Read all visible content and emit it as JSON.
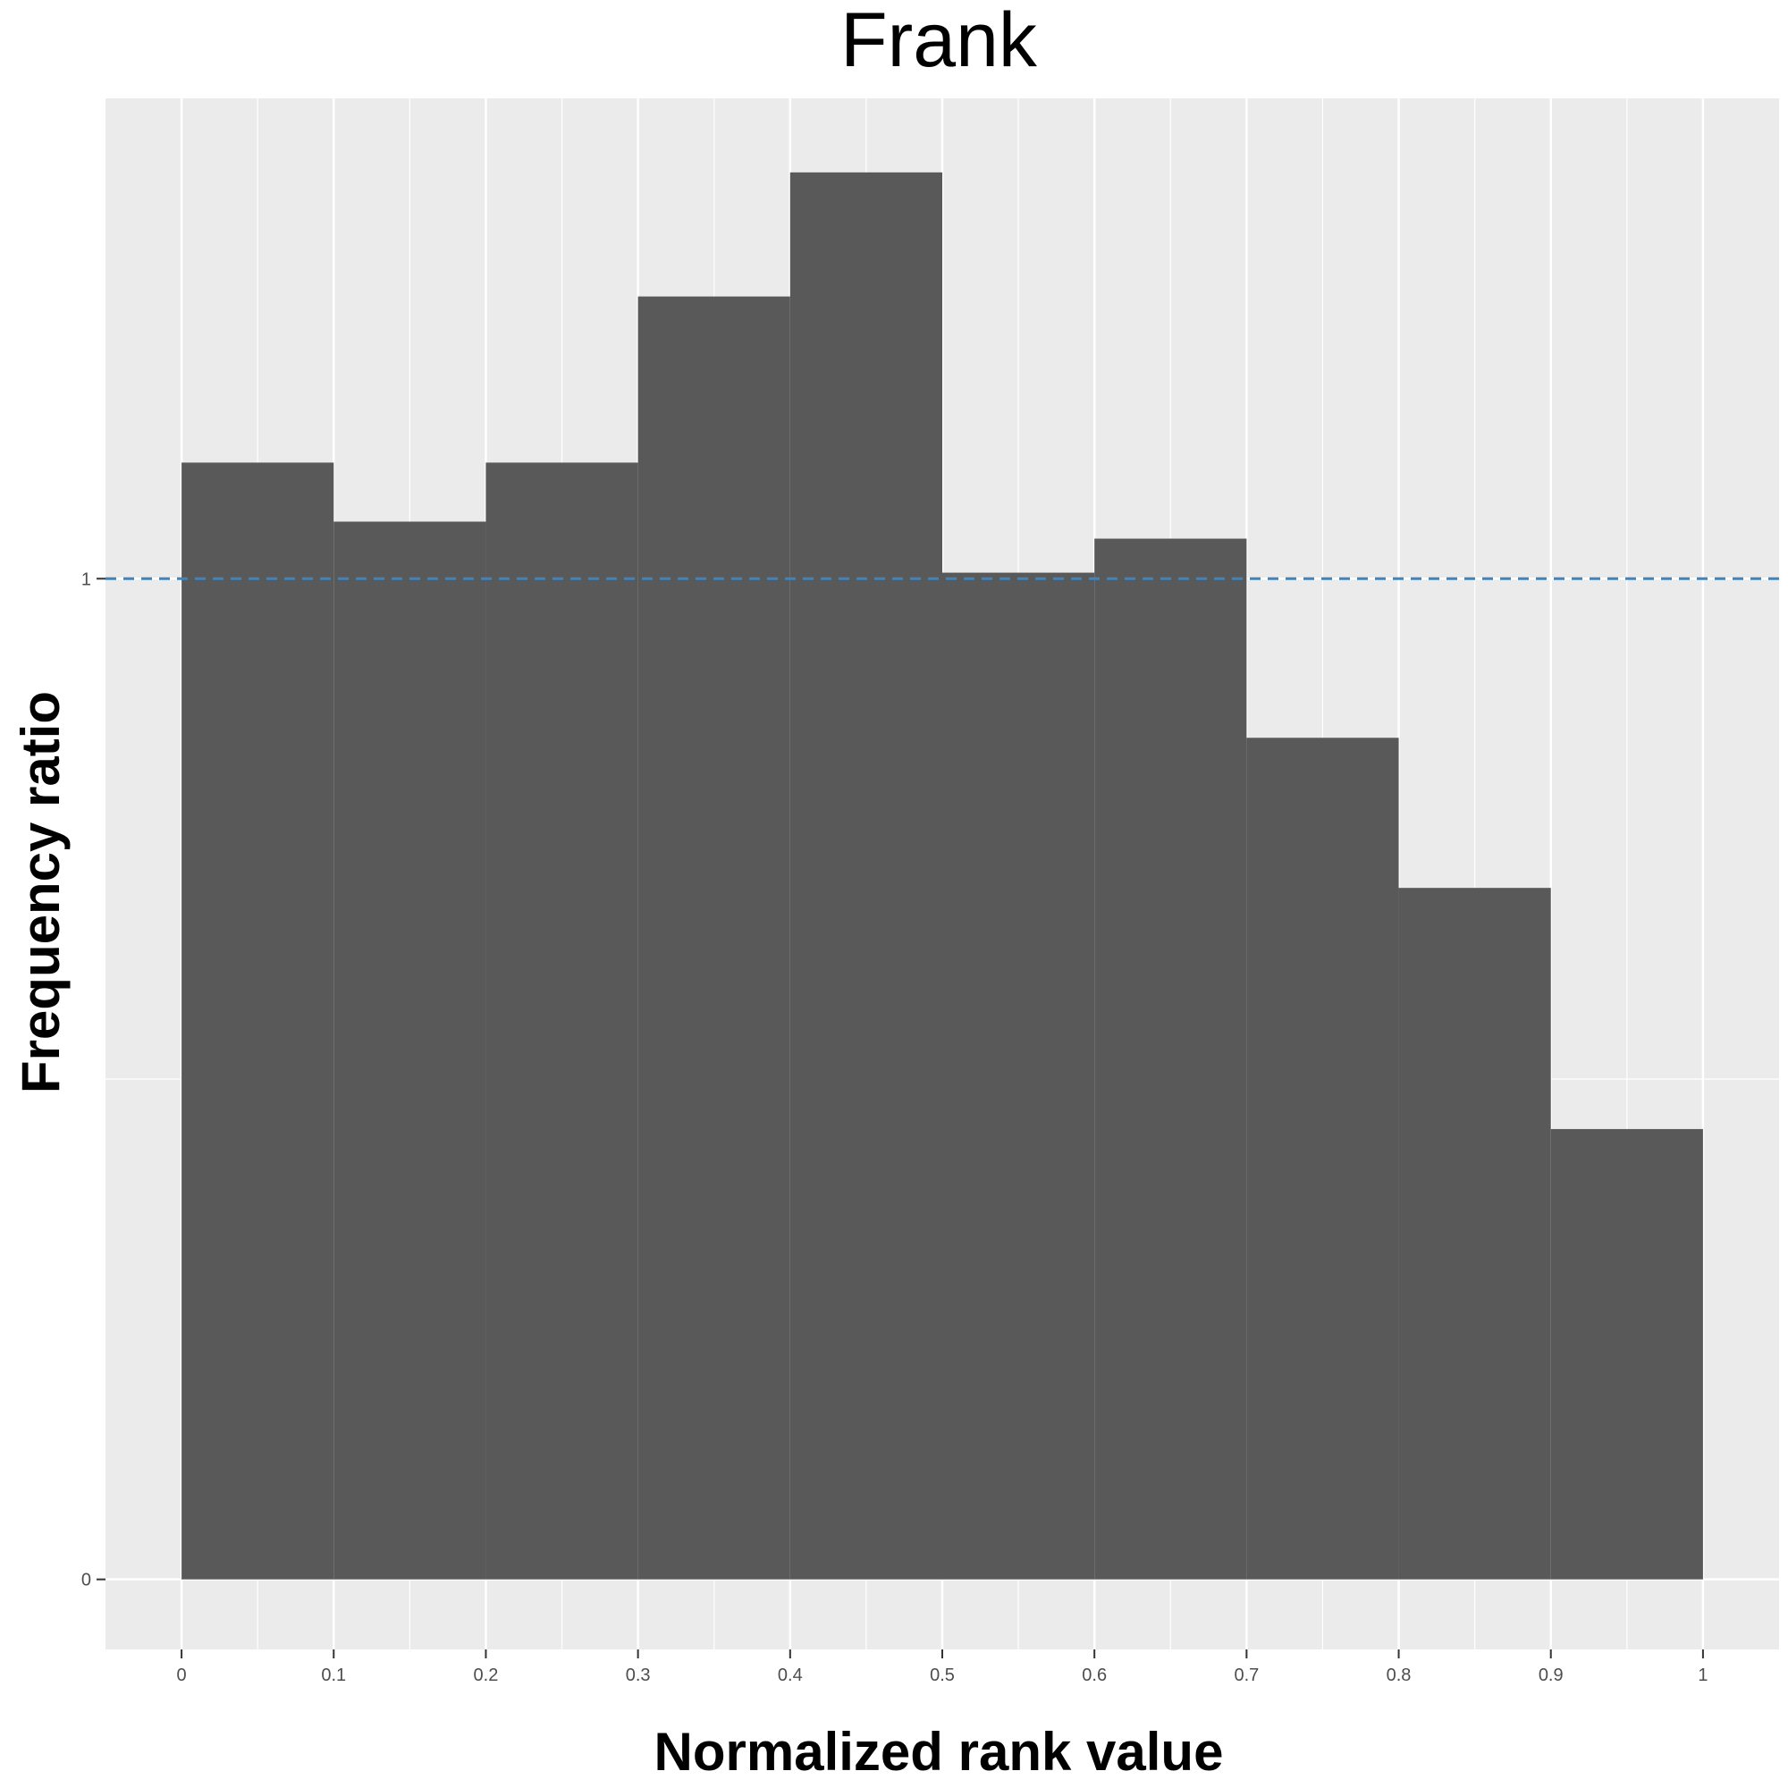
{
  "chart_data": {
    "type": "bar",
    "title": "Frank",
    "xlabel": "Normalized rank value",
    "ylabel": "Frequency ratio",
    "bins": [
      {
        "x0": 0.0,
        "x1": 0.1,
        "value": 1.116
      },
      {
        "x0": 0.1,
        "x1": 0.2,
        "value": 1.057
      },
      {
        "x0": 0.2,
        "x1": 0.3,
        "value": 1.116
      },
      {
        "x0": 0.3,
        "x1": 0.4,
        "value": 1.282
      },
      {
        "x0": 0.4,
        "x1": 0.5,
        "value": 1.406
      },
      {
        "x0": 0.5,
        "x1": 0.6,
        "value": 1.006
      },
      {
        "x0": 0.6,
        "x1": 0.7,
        "value": 1.04
      },
      {
        "x0": 0.7,
        "x1": 0.8,
        "value": 0.841
      },
      {
        "x0": 0.8,
        "x1": 0.9,
        "value": 0.691
      },
      {
        "x0": 0.9,
        "x1": 1.0,
        "value": 0.45
      }
    ],
    "x_ticks": [
      {
        "value": 0.0,
        "label": "0"
      },
      {
        "value": 0.1,
        "label": "0.1"
      },
      {
        "value": 0.2,
        "label": "0.2"
      },
      {
        "value": 0.3,
        "label": "0.3"
      },
      {
        "value": 0.4,
        "label": "0.4"
      },
      {
        "value": 0.5,
        "label": "0.5"
      },
      {
        "value": 0.6,
        "label": "0.6"
      },
      {
        "value": 0.7,
        "label": "0.7"
      },
      {
        "value": 0.8,
        "label": "0.8"
      },
      {
        "value": 0.9,
        "label": "0.9"
      },
      {
        "value": 1.0,
        "label": "1"
      }
    ],
    "y_ticks": [
      {
        "value": 0,
        "label": "0"
      },
      {
        "value": 1,
        "label": "1"
      }
    ],
    "xlim": [
      -0.05,
      1.05
    ],
    "ylim": [
      -0.07,
      1.48
    ],
    "reference_line": {
      "y": 1,
      "style": "dashed",
      "color": "#4682b4"
    },
    "grid": true,
    "colors": {
      "bar": "#595959",
      "panel": "#ebebeb",
      "grid_major": "#ffffff"
    }
  }
}
